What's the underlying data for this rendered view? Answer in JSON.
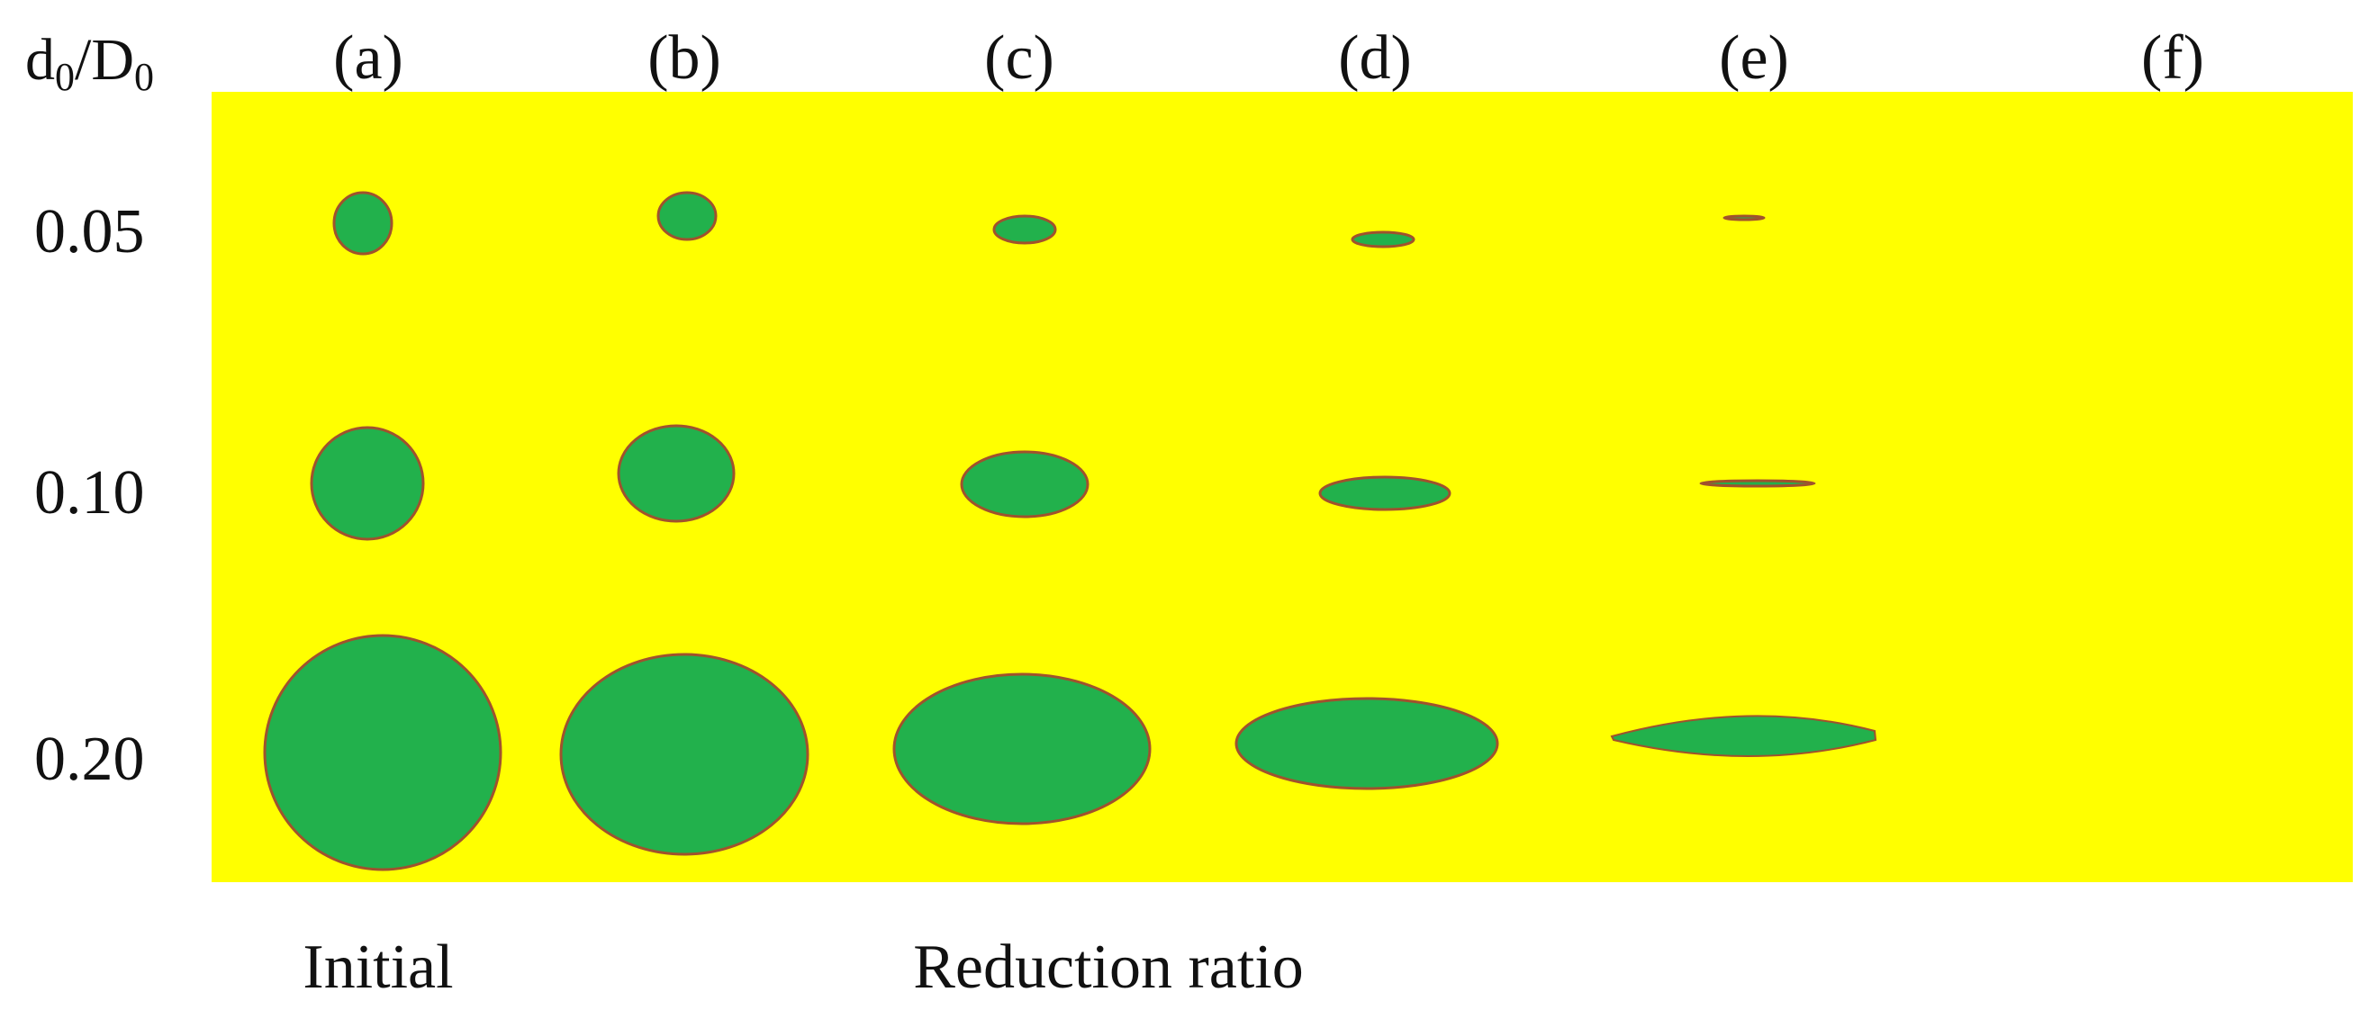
{
  "axis_header": {
    "d": "d",
    "sub0": "0",
    "slash_D": "/D",
    "sub1": "0"
  },
  "columns": [
    "(a)",
    "(b)",
    "(c)",
    "(d)",
    "(e)",
    "(f)"
  ],
  "rows": [
    "0.05",
    "0.10",
    "0.20"
  ],
  "bottom_labels": {
    "initial": "Initial",
    "reduction": "Reduction ratio"
  },
  "colors": {
    "matrix": "#ffff00",
    "inclusion": "#22b14c",
    "edge": "#a0522d"
  }
}
